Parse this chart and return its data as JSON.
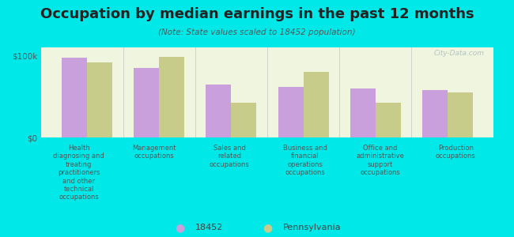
{
  "title": "Occupation by median earnings in the past 12 months",
  "subtitle": "(Note: State values scaled to 18452 population)",
  "background_color": "#00e8e8",
  "plot_bg_color": "#f0f5e0",
  "categories": [
    "Health\ndiagnosing and\ntreating\npractitioners\nand other\ntechnical\noccupations",
    "Management\noccupations",
    "Sales and\nrelated\noccupations",
    "Business and\nfinancial\noperations\noccupations",
    "Office and\nadministrative\nsupport\noccupations",
    "Production\noccupations"
  ],
  "values_18452": [
    97000,
    85000,
    65000,
    62000,
    60000,
    58000
  ],
  "values_pennsylvania": [
    92000,
    98000,
    42000,
    80000,
    42000,
    55000
  ],
  "color_18452": "#c9a0dc",
  "color_pennsylvania": "#c8cc8a",
  "ylim": [
    0,
    110000
  ],
  "yticks": [
    0,
    100000
  ],
  "ytick_labels": [
    "$0",
    "$100k"
  ],
  "legend_labels": [
    "18452",
    "Pennsylvania"
  ],
  "watermark": "City-Data.com",
  "bar_width": 0.35
}
